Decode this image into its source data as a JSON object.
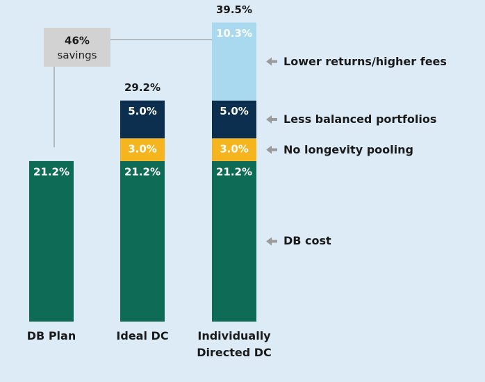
{
  "chart_data": {
    "type": "stacked_bar",
    "categories": [
      "DB Plan",
      "Ideal DC",
      "Individually Directed DC"
    ],
    "series": [
      {
        "name": "DB cost",
        "color": "#0e6b56",
        "values": [
          21.2,
          21.2,
          21.2
        ],
        "value_labels": [
          "21.2%",
          "21.2%",
          "21.2%"
        ]
      },
      {
        "name": "No longevity pooling",
        "color": "#f6b51e",
        "values": [
          null,
          3.0,
          3.0
        ],
        "value_labels": [
          null,
          "3.0%",
          "3.0%"
        ]
      },
      {
        "name": "Less balanced portfolios",
        "color": "#0c2f4f",
        "values": [
          null,
          5.0,
          5.0
        ],
        "value_labels": [
          null,
          "5.0%",
          "5.0%"
        ]
      },
      {
        "name": "Lower returns/higher fees",
        "color": "#a8d9ef",
        "values": [
          null,
          null,
          10.3
        ],
        "value_labels": [
          null,
          null,
          "10.3%"
        ]
      }
    ],
    "totals": [
      null,
      29.2,
      39.5
    ],
    "total_labels": [
      null,
      "29.2%",
      "39.5%"
    ],
    "annotation": {
      "label": "46%",
      "text": "savings"
    },
    "ylim": [
      0,
      40
    ]
  }
}
